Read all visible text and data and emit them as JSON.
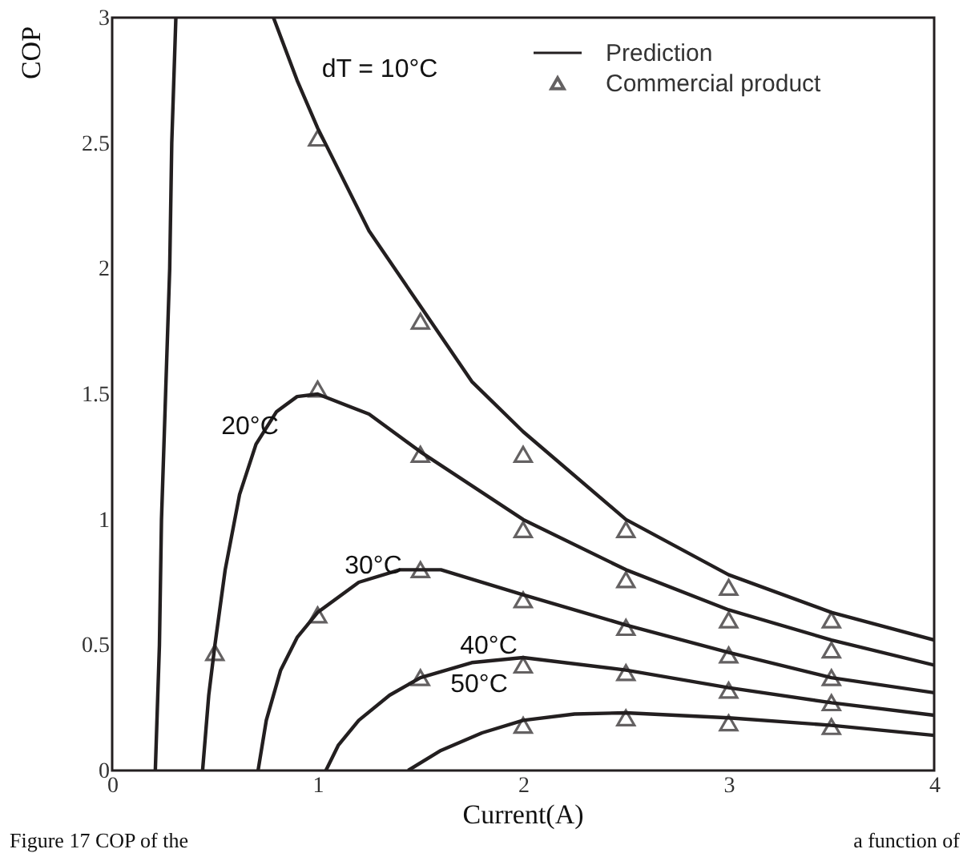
{
  "chart_data": {
    "type": "line",
    "xlabel": "Current(A)",
    "ylabel": "COP",
    "xlim": [
      0,
      4
    ],
    "ylim": [
      0,
      3
    ],
    "xticks": [
      0,
      1,
      2,
      3,
      4
    ],
    "yticks": [
      0,
      0.5,
      1,
      1.5,
      2,
      2.5,
      3
    ],
    "grid": false,
    "legend": "top right",
    "series": [
      {
        "name": "Prediction",
        "color": "#231f20",
        "line_style": "solid",
        "marker": "none",
        "x": [
          0.21,
          0.23,
          0.24,
          0.26,
          0.28,
          0.29,
          0.31,
          null,
          0.785,
          0.9,
          1.0,
          1.25,
          1.5,
          1.75,
          2,
          2.5,
          3,
          3.5,
          4,
          null,
          0.44,
          0.47,
          0.5,
          0.55,
          0.62,
          0.7,
          0.8,
          0.9,
          1.0,
          1.25,
          1.5,
          2,
          2.5,
          3,
          3.5,
          4,
          null,
          0.71,
          0.75,
          0.82,
          0.9,
          1,
          1.2,
          1.4,
          1.6,
          2,
          2.5,
          3,
          3.5,
          4,
          null,
          1.04,
          1.1,
          1.2,
          1.35,
          1.5,
          1.75,
          2,
          2.5,
          3,
          3.5,
          4,
          null,
          1.44,
          1.6,
          1.8,
          2,
          2.25,
          2.5,
          3,
          3.5,
          4
        ],
        "values": [
          0,
          0.5,
          1,
          1.5,
          2,
          2.5,
          3,
          null,
          3,
          2.75,
          2.56,
          2.15,
          1.85,
          1.55,
          1.35,
          1.0,
          0.78,
          0.63,
          0.52,
          null,
          0,
          0.3,
          0.5,
          0.8,
          1.1,
          1.3,
          1.43,
          1.49,
          1.5,
          1.42,
          1.27,
          1.0,
          0.8,
          0.64,
          0.52,
          0.42,
          null,
          0,
          0.2,
          0.4,
          0.53,
          0.63,
          0.75,
          0.8,
          0.8,
          0.7,
          0.58,
          0.47,
          0.37,
          0.31,
          null,
          0,
          0.1,
          0.2,
          0.3,
          0.37,
          0.43,
          0.45,
          0.4,
          0.33,
          0.27,
          0.22,
          null,
          0,
          0.08,
          0.15,
          0.2,
          0.225,
          0.23,
          0.21,
          0.18,
          0.14
        ]
      },
      {
        "name": "Commercial product",
        "type": "scatter",
        "color": "#231f20",
        "marker": "triangle",
        "x": [
          0.5,
          1,
          1,
          1,
          1.5,
          1.5,
          1.5,
          1.5,
          2,
          2,
          2,
          2,
          2,
          2.5,
          2.5,
          2.5,
          2.5,
          2.5,
          3,
          3,
          3,
          3,
          3,
          3.5,
          3.5,
          3.5,
          3.5,
          3.5
        ],
        "values": [
          0.47,
          2.52,
          1.52,
          0.62,
          1.79,
          1.26,
          0.8,
          0.37,
          1.26,
          0.96,
          0.68,
          0.42,
          0.18,
          0.96,
          0.76,
          0.57,
          0.39,
          0.21,
          0.73,
          0.6,
          0.46,
          0.32,
          0.19,
          0.6,
          0.48,
          0.37,
          0.27,
          0.175
        ]
      }
    ],
    "annotations": [
      "dT = 10°C",
      "20°C",
      "30°C",
      "40°C",
      "50°C",
      "Figure 17 COP of the",
      "a function of"
    ]
  }
}
